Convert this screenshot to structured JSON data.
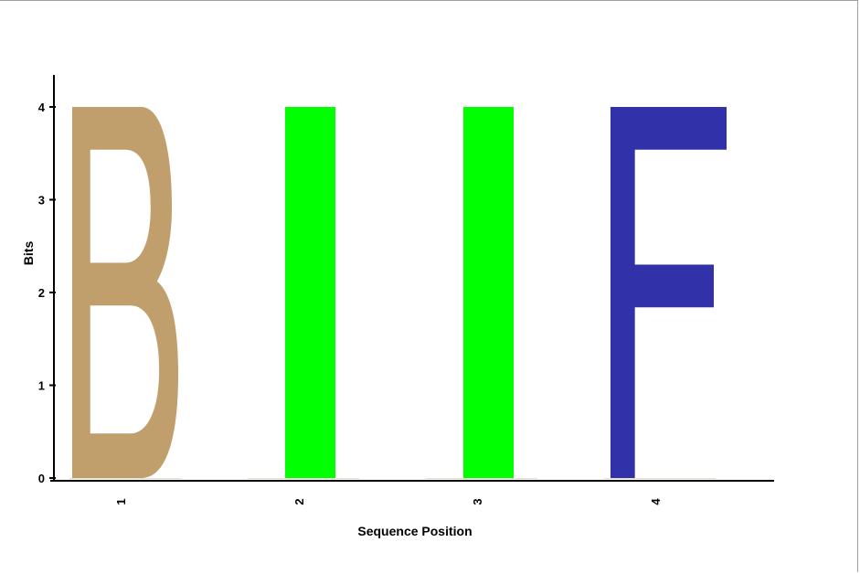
{
  "chart_data": {
    "type": "sequence-logo",
    "xlabel": "Sequence Position",
    "ylabel": "Bits",
    "ylim": [
      0,
      4.05
    ],
    "yticks": [
      "0",
      "1",
      "2",
      "3",
      "4"
    ],
    "positions": [
      "1",
      "2",
      "3",
      "4"
    ],
    "stacks": [
      {
        "position": "1",
        "letter": "B",
        "bits": 4.0,
        "color": "#C19F6C"
      },
      {
        "position": "2",
        "letter": "I",
        "bits": 4.0,
        "color": "#00FF00"
      },
      {
        "position": "3",
        "letter": "I",
        "bits": 4.0,
        "color": "#00FF00"
      },
      {
        "position": "4",
        "letter": "F",
        "bits": 4.0,
        "color": "#3131AA"
      }
    ]
  }
}
